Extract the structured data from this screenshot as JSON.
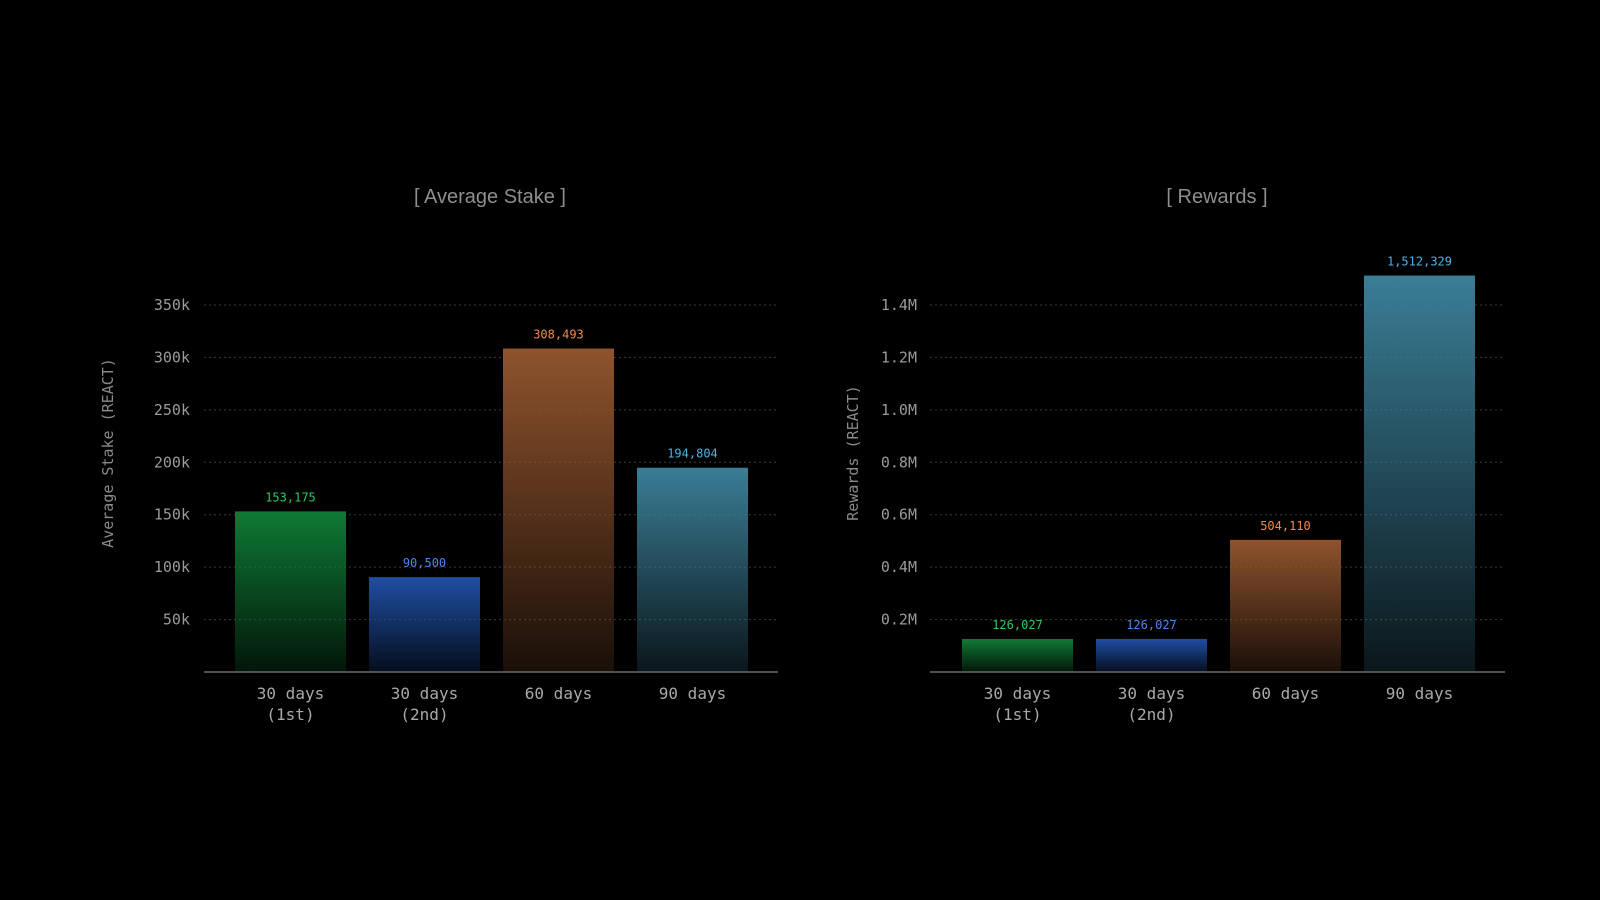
{
  "colors": {
    "green": "#0f7a35",
    "blue": "#1f4ea3",
    "orange": "#8f532d",
    "teal": "#3a7e96",
    "green_label": "#2fc95e",
    "blue_label": "#4f86ee",
    "orange_label": "#f08b4a",
    "teal_label": "#4cb2e6"
  },
  "chart_data": [
    {
      "type": "bar",
      "title": "[ Average Stake ]",
      "ylabel": "Average Stake (REACT)",
      "xlabel": "",
      "categories": [
        [
          "30 days",
          "(1st)"
        ],
        [
          "30 days",
          "(2nd)"
        ],
        [
          "60 days"
        ],
        [
          "90 days"
        ]
      ],
      "values": [
        153175,
        90500,
        308493,
        194804
      ],
      "value_labels": [
        "153,175",
        "90,500",
        "308,493",
        "194,804"
      ],
      "bar_colors": [
        "green",
        "blue",
        "orange",
        "teal"
      ],
      "ylim": [
        0,
        350000
      ],
      "yticks": [
        50000,
        100000,
        150000,
        200000,
        250000,
        300000,
        350000
      ],
      "ytick_labels": [
        "50k",
        "100k",
        "150k",
        "200k",
        "250k",
        "300k",
        "350k"
      ],
      "grid": true
    },
    {
      "type": "bar",
      "title": "[ Rewards ]",
      "ylabel": "Rewards (REACT)",
      "xlabel": "",
      "categories": [
        [
          "30 days",
          "(1st)"
        ],
        [
          "30 days",
          "(2nd)"
        ],
        [
          "60 days"
        ],
        [
          "90 days"
        ]
      ],
      "values": [
        126027,
        126027,
        504110,
        1512329
      ],
      "value_labels": [
        "126,027",
        "126,027",
        "504,110",
        "1,512,329"
      ],
      "bar_colors": [
        "green",
        "blue",
        "orange",
        "teal"
      ],
      "ylim": [
        0,
        1400000
      ],
      "yticks": [
        200000,
        400000,
        600000,
        800000,
        1000000,
        1200000,
        1400000
      ],
      "ytick_labels": [
        "0.2M",
        "0.4M",
        "0.6M",
        "0.8M",
        "1.0M",
        "1.2M",
        "1.4M"
      ],
      "grid": true
    }
  ]
}
